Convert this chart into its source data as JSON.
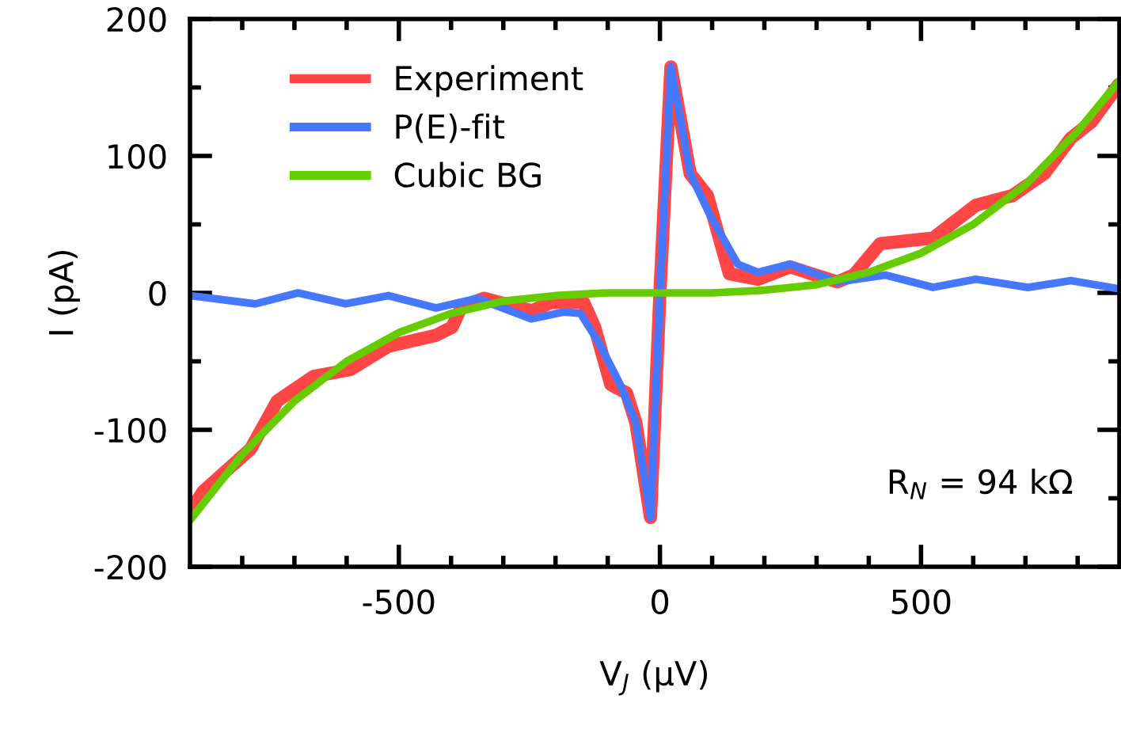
{
  "chart_data": {
    "type": "line",
    "xlabel": "V$_{J}$ (μV)",
    "ylabel": "I (pA)",
    "xlim": [
      -900,
      880
    ],
    "ylim": [
      -200,
      200
    ],
    "xticks": [
      {
        "value": -800,
        "label": null
      },
      {
        "value": -700,
        "label": null
      },
      {
        "value": -600,
        "label": null
      },
      -500,
      {
        "value": -400,
        "label": null
      },
      {
        "value": -300,
        "label": null
      },
      {
        "value": -200,
        "label": null
      },
      {
        "value": -100,
        "label": null
      },
      0,
      {
        "value": 100,
        "label": null
      },
      {
        "value": 200,
        "label": null
      },
      {
        "value": 300,
        "label": null
      },
      {
        "value": 400,
        "label": null
      },
      500,
      {
        "value": 600,
        "label": null
      },
      {
        "value": 700,
        "label": null
      },
      {
        "value": 800,
        "label": null
      }
    ],
    "yticks": [
      -200,
      {
        "value": -150,
        "label": null
      },
      -100,
      {
        "value": -50,
        "label": null
      },
      0,
      {
        "value": 50,
        "label": null
      },
      100,
      {
        "value": 150,
        "label": null
      },
      200
    ],
    "legend": "top left",
    "grid": false,
    "marker": "none",
    "line_style": "solid",
    "annotations": [
      "R$_{N}$ = 94 kΩ"
    ],
    "series": [
      {
        "name": "Experiment",
        "color": "#ff4646",
        "x": [
          -900,
          -875,
          -784,
          -733,
          -663,
          -593,
          -520,
          -429,
          -398,
          -380,
          -337,
          -246,
          -207,
          -146,
          -125,
          -94,
          -64,
          -46,
          -18,
          0,
          21,
          58,
          91,
          133,
          188,
          249,
          340,
          371,
          422,
          523,
          605,
          675,
          736,
          787,
          827,
          878
        ],
        "values": [
          -160,
          -145,
          -114,
          -79,
          -61,
          -56,
          -39,
          -31,
          -25,
          -10,
          -4,
          -13,
          -7,
          -7,
          -25,
          -67,
          -73,
          -95,
          -164,
          0,
          165,
          87,
          71,
          14,
          10,
          19,
          8,
          13,
          36,
          40,
          64,
          71,
          87,
          113,
          125,
          152
        ]
      },
      {
        "name": "P(E)-fit",
        "color": "#4677ff",
        "x": [
          -900,
          -775,
          -693,
          -602,
          -520,
          -429,
          -350,
          -246,
          -185,
          -152,
          -116,
          -76,
          -46,
          -18,
          0,
          21,
          58,
          97,
          149,
          188,
          249,
          340,
          432,
          523,
          605,
          705,
          787,
          878
        ],
        "values": [
          -2,
          -8,
          0,
          -8,
          -2,
          -11,
          -4,
          -19,
          -14,
          -15,
          -37,
          -67,
          -95,
          -164,
          0,
          165,
          87,
          56,
          21,
          15,
          21,
          8,
          13,
          4,
          10,
          4,
          9,
          3
        ]
      },
      {
        "name": "Cubic BG",
        "color": "#66cc00",
        "x": [
          -900,
          -800,
          -700,
          -600,
          -500,
          -400,
          -300,
          -200,
          -100,
          0,
          100,
          200,
          300,
          400,
          500,
          600,
          700,
          800,
          880
        ],
        "values": [
          -166,
          -118,
          -79,
          -50,
          -29,
          -15,
          -6,
          -2,
          0,
          0,
          0,
          2,
          6,
          15,
          29,
          50,
          79,
          118,
          155
        ]
      }
    ]
  }
}
